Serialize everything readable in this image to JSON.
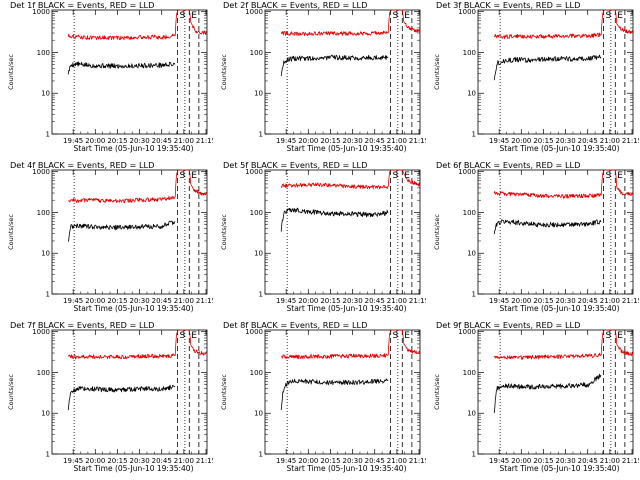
{
  "figure": {
    "xlabel": "Start Time (05-Jun-10 19:35:40)",
    "ylabel": "Counts/sec",
    "colors": {
      "events": "#000000",
      "lld": "#e00000",
      "axes": "#000000",
      "background": "#ffffff"
    }
  },
  "chart_data": [
    {
      "type": "line",
      "title": "Det 1f BLACK = Events, RED = LLD",
      "xlabel": "Start Time (05-Jun-10 19:35:40)",
      "ylabel": "Counts/sec",
      "yscale": "log",
      "ylim": [
        1,
        1100
      ],
      "xlim_minutes": [
        -5,
        100
      ],
      "xticks": [
        "19:45",
        "20:00",
        "20:15",
        "20:30",
        "20:45",
        "21:00",
        "21:15"
      ],
      "yticks": [
        "1",
        "10",
        "100",
        "1000"
      ],
      "series": [
        {
          "name": "Events",
          "color": "black",
          "x": [
            6,
            8,
            12,
            20,
            30,
            40,
            50,
            60,
            70,
            78.5
          ],
          "values": [
            31,
            50,
            52,
            48,
            47,
            46,
            47,
            48,
            49,
            52
          ]
        },
        {
          "name": "LLD",
          "color": "red",
          "x": [
            6,
            10,
            20,
            30,
            40,
            50,
            60,
            70,
            78.5,
            79.5,
            80.5,
            88,
            89,
            92,
            96,
            100
          ],
          "values": [
            260,
            245,
            230,
            232,
            228,
            230,
            240,
            232,
            260,
            900,
            1100,
            1100,
            540,
            340,
            310,
            300
          ]
        }
      ],
      "markers": [
        {
          "label": "S",
          "x": 80,
          "style": "dashed"
        },
        {
          "label": "E",
          "x": 88,
          "style": "dashed"
        },
        {
          "x": 10,
          "style": "dotted"
        },
        {
          "x": 85,
          "style": "dotted"
        },
        {
          "x": 94.5,
          "style": "dashed"
        }
      ]
    },
    {
      "type": "line",
      "title": "Det 2f BLACK = Events, RED = LLD",
      "xlabel": "Start Time (05-Jun-10 19:35:40)",
      "ylabel": "Counts/sec",
      "yscale": "log",
      "ylim": [
        1,
        1100
      ],
      "xlim_minutes": [
        -5,
        100
      ],
      "xticks": [
        "19:45",
        "20:00",
        "20:15",
        "20:30",
        "20:45",
        "21:00",
        "21:15"
      ],
      "yticks": [
        "1",
        "10",
        "100",
        "1000"
      ],
      "series": [
        {
          "name": "Events",
          "color": "black",
          "x": [
            6,
            8,
            12,
            20,
            30,
            40,
            50,
            60,
            70,
            78.5
          ],
          "values": [
            28,
            60,
            70,
            72,
            72,
            75,
            74,
            74,
            75,
            75
          ]
        },
        {
          "name": "LLD",
          "color": "red",
          "x": [
            6,
            10,
            20,
            30,
            40,
            50,
            60,
            70,
            78.5,
            79.5,
            80.5,
            88,
            89,
            92,
            96,
            100
          ],
          "values": [
            300,
            290,
            285,
            290,
            292,
            290,
            295,
            300,
            300,
            950,
            1100,
            1100,
            560,
            400,
            360,
            330
          ]
        }
      ],
      "markers": [
        {
          "label": "S",
          "x": 80,
          "style": "dashed"
        },
        {
          "label": "E",
          "x": 88,
          "style": "dashed"
        },
        {
          "x": 10,
          "style": "dotted"
        },
        {
          "x": 85,
          "style": "dotted"
        },
        {
          "x": 94.5,
          "style": "dashed"
        }
      ]
    },
    {
      "type": "line",
      "title": "Det 3f BLACK = Events, RED = LLD",
      "xlabel": "Start Time (05-Jun-10 19:35:40)",
      "ylabel": "Counts/sec",
      "yscale": "log",
      "ylim": [
        1,
        1100
      ],
      "xlim_minutes": [
        -5,
        100
      ],
      "xticks": [
        "19:45",
        "20:00",
        "20:15",
        "20:30",
        "20:45",
        "21:00",
        "21:15"
      ],
      "yticks": [
        "1",
        "10",
        "100",
        "1000"
      ],
      "series": [
        {
          "name": "Events",
          "color": "black",
          "x": [
            6,
            8,
            12,
            20,
            30,
            40,
            50,
            60,
            70,
            78.5
          ],
          "values": [
            22,
            55,
            62,
            66,
            65,
            68,
            70,
            70,
            72,
            76
          ]
        },
        {
          "name": "LLD",
          "color": "red",
          "x": [
            6,
            10,
            20,
            30,
            40,
            50,
            60,
            70,
            78.5,
            79.5,
            80.5,
            88,
            89,
            92,
            96,
            100
          ],
          "values": [
            250,
            240,
            250,
            248,
            245,
            250,
            255,
            258,
            270,
            900,
            1100,
            1100,
            500,
            360,
            330,
            310
          ]
        }
      ],
      "markers": [
        {
          "label": "S",
          "x": 80,
          "style": "dashed"
        },
        {
          "label": "E",
          "x": 88,
          "style": "dashed"
        },
        {
          "x": 10,
          "style": "dotted"
        },
        {
          "x": 85,
          "style": "dotted"
        },
        {
          "x": 94.5,
          "style": "dashed"
        }
      ]
    },
    {
      "type": "line",
      "title": "Det 4f BLACK = Events, RED = LLD",
      "xlabel": "Start Time (05-Jun-10 19:35:40)",
      "ylabel": "Counts/sec",
      "yscale": "log",
      "ylim": [
        1,
        1100
      ],
      "xlim_minutes": [
        -5,
        100
      ],
      "xticks": [
        "19:45",
        "20:00",
        "20:15",
        "20:30",
        "20:45",
        "21:00",
        "21:15"
      ],
      "yticks": [
        "1",
        "10",
        "100",
        "1000"
      ],
      "series": [
        {
          "name": "Events",
          "color": "black",
          "x": [
            6,
            8,
            12,
            20,
            30,
            40,
            50,
            60,
            70,
            78.5
          ],
          "values": [
            20,
            45,
            48,
            45,
            44,
            43,
            44,
            45,
            46,
            60
          ]
        },
        {
          "name": "LLD",
          "color": "red",
          "x": [
            6,
            10,
            20,
            30,
            40,
            50,
            60,
            70,
            78.5,
            79.5,
            80.5,
            88,
            89,
            92,
            96,
            100
          ],
          "values": [
            200,
            195,
            200,
            195,
            192,
            198,
            205,
            210,
            240,
            900,
            1100,
            1100,
            480,
            330,
            300,
            280
          ]
        }
      ],
      "markers": [
        {
          "label": "S",
          "x": 80,
          "style": "dashed"
        },
        {
          "label": "E",
          "x": 88,
          "style": "dashed"
        },
        {
          "x": 10,
          "style": "dotted"
        },
        {
          "x": 85,
          "style": "dotted"
        },
        {
          "x": 94.5,
          "style": "dashed"
        }
      ]
    },
    {
      "type": "line",
      "title": "Det 5f BLACK = Events, RED = LLD",
      "xlabel": "Start Time (05-Jun-10 19:35:40)",
      "ylabel": "Counts/sec",
      "yscale": "log",
      "ylim": [
        1,
        1100
      ],
      "xlim_minutes": [
        -5,
        100
      ],
      "xticks": [
        "19:45",
        "20:00",
        "20:15",
        "20:30",
        "20:45",
        "21:00",
        "21:15"
      ],
      "yticks": [
        "1",
        "10",
        "100",
        "1000"
      ],
      "series": [
        {
          "name": "Events",
          "color": "black",
          "x": [
            6,
            8,
            12,
            20,
            30,
            40,
            50,
            60,
            70,
            78.5
          ],
          "values": [
            35,
            100,
            115,
            110,
            100,
            95,
            92,
            90,
            88,
            100
          ]
        },
        {
          "name": "LLD",
          "color": "red",
          "x": [
            6,
            10,
            20,
            30,
            40,
            50,
            60,
            70,
            78.5,
            79.5,
            80.5,
            88,
            89,
            92,
            96,
            100
          ],
          "values": [
            450,
            460,
            470,
            480,
            470,
            440,
            420,
            410,
            430,
            1000,
            1100,
            1100,
            900,
            600,
            520,
            480
          ]
        }
      ],
      "markers": [
        {
          "label": "S",
          "x": 80,
          "style": "dashed"
        },
        {
          "label": "E",
          "x": 88,
          "style": "dashed"
        },
        {
          "x": 10,
          "style": "dotted"
        },
        {
          "x": 85,
          "style": "dotted"
        },
        {
          "x": 94.5,
          "style": "dashed"
        }
      ]
    },
    {
      "type": "line",
      "title": "Det 6f BLACK = Events, RED = LLD",
      "xlabel": "Start Time (05-Jun-10 19:35:40)",
      "ylabel": "Counts/sec",
      "yscale": "log",
      "ylim": [
        1,
        1100
      ],
      "xlim_minutes": [
        -5,
        100
      ],
      "xticks": [
        "19:45",
        "20:00",
        "20:15",
        "20:30",
        "20:45",
        "21:00",
        "21:15"
      ],
      "yticks": [
        "1",
        "10",
        "100",
        "1000"
      ],
      "series": [
        {
          "name": "Events",
          "color": "black",
          "x": [
            6,
            8,
            12,
            20,
            30,
            40,
            50,
            60,
            70,
            78.5
          ],
          "values": [
            30,
            55,
            60,
            58,
            52,
            50,
            50,
            50,
            52,
            60
          ]
        },
        {
          "name": "LLD",
          "color": "red",
          "x": [
            6,
            10,
            20,
            30,
            40,
            50,
            60,
            70,
            78.5,
            79.5,
            80.5,
            88,
            89,
            92,
            96,
            100
          ],
          "values": [
            300,
            290,
            280,
            265,
            255,
            250,
            250,
            255,
            265,
            900,
            1100,
            1100,
            400,
            300,
            280,
            270
          ]
        }
      ],
      "markers": [
        {
          "label": "S",
          "x": 80,
          "style": "dashed"
        },
        {
          "label": "E",
          "x": 88,
          "style": "dashed"
        },
        {
          "x": 10,
          "style": "dotted"
        },
        {
          "x": 85,
          "style": "dotted"
        },
        {
          "x": 94.5,
          "style": "dashed"
        }
      ]
    },
    {
      "type": "line",
      "title": "Det 7f BLACK = Events, RED = LLD",
      "xlabel": "Start Time (05-Jun-10 19:35:40)",
      "ylabel": "Counts/sec",
      "yscale": "log",
      "ylim": [
        1,
        1100
      ],
      "xlim_minutes": [
        -5,
        100
      ],
      "xticks": [
        "19:45",
        "20:00",
        "20:15",
        "20:30",
        "20:45",
        "21:00",
        "21:15"
      ],
      "yticks": [
        "1",
        "10",
        "100",
        "1000"
      ],
      "series": [
        {
          "name": "Events",
          "color": "black",
          "x": [
            6,
            8,
            12,
            20,
            30,
            40,
            50,
            60,
            70,
            78.5
          ],
          "values": [
            12,
            35,
            40,
            40,
            38,
            38,
            39,
            40,
            40,
            45
          ]
        },
        {
          "name": "LLD",
          "color": "red",
          "x": [
            6,
            10,
            20,
            30,
            40,
            50,
            60,
            70,
            78.5,
            79.5,
            80.5,
            88,
            89,
            92,
            96,
            100
          ],
          "values": [
            250,
            240,
            245,
            240,
            242,
            245,
            250,
            252,
            260,
            900,
            1100,
            1100,
            460,
            330,
            300,
            290
          ]
        }
      ],
      "markers": [
        {
          "label": "S",
          "x": 80,
          "style": "dashed"
        },
        {
          "label": "E",
          "x": 88,
          "style": "dashed"
        },
        {
          "x": 10,
          "style": "dotted"
        },
        {
          "x": 85,
          "style": "dotted"
        },
        {
          "x": 94.5,
          "style": "dashed"
        }
      ]
    },
    {
      "type": "line",
      "title": "Det 8f BLACK = Events, RED = LLD",
      "xlabel": "Start Time (05-Jun-10 19:35:40)",
      "ylabel": "Counts/sec",
      "yscale": "log",
      "ylim": [
        1,
        1100
      ],
      "xlim_minutes": [
        -5,
        100
      ],
      "xticks": [
        "19:45",
        "20:00",
        "20:15",
        "20:30",
        "20:45",
        "21:00",
        "21:15"
      ],
      "yticks": [
        "1",
        "10",
        "100",
        "1000"
      ],
      "series": [
        {
          "name": "Events",
          "color": "black",
          "x": [
            6,
            8,
            12,
            20,
            30,
            40,
            50,
            60,
            70,
            78.5
          ],
          "values": [
            12,
            45,
            60,
            62,
            58,
            56,
            57,
            58,
            60,
            65
          ]
        },
        {
          "name": "LLD",
          "color": "red",
          "x": [
            6,
            10,
            20,
            30,
            40,
            50,
            60,
            70,
            78.5,
            79.5,
            80.5,
            88,
            89,
            92,
            96,
            100
          ],
          "values": [
            250,
            245,
            240,
            250,
            248,
            252,
            255,
            258,
            265,
            900,
            1100,
            1100,
            500,
            360,
            320,
            300
          ]
        }
      ],
      "markers": [
        {
          "label": "S",
          "x": 80,
          "style": "dashed"
        },
        {
          "label": "E",
          "x": 88,
          "style": "dashed"
        },
        {
          "x": 10,
          "style": "dotted"
        },
        {
          "x": 85,
          "style": "dotted"
        },
        {
          "x": 94.5,
          "style": "dashed"
        }
      ]
    },
    {
      "type": "line",
      "title": "Det 9f BLACK = Events, RED = LLD",
      "xlabel": "Start Time (05-Jun-10 19:35:40)",
      "ylabel": "Counts/sec",
      "yscale": "log",
      "ylim": [
        1,
        1100
      ],
      "xlim_minutes": [
        -5,
        100
      ],
      "xticks": [
        "19:45",
        "20:00",
        "20:15",
        "20:30",
        "20:45",
        "21:00",
        "21:15"
      ],
      "yticks": [
        "1",
        "10",
        "100",
        "1000"
      ],
      "series": [
        {
          "name": "Events",
          "color": "black",
          "x": [
            6,
            8,
            12,
            20,
            30,
            40,
            50,
            60,
            70,
            78.5
          ],
          "values": [
            10,
            40,
            48,
            45,
            44,
            45,
            46,
            48,
            50,
            85
          ]
        },
        {
          "name": "LLD",
          "color": "red",
          "x": [
            6,
            10,
            20,
            30,
            40,
            50,
            60,
            70,
            78.5,
            79.5,
            80.5,
            88,
            89,
            92,
            96,
            100
          ],
          "values": [
            250,
            240,
            230,
            235,
            240,
            245,
            250,
            255,
            270,
            900,
            1100,
            1100,
            480,
            330,
            300,
            280
          ]
        }
      ],
      "markers": [
        {
          "label": "S",
          "x": 80,
          "style": "dashed"
        },
        {
          "label": "E",
          "x": 88,
          "style": "dashed"
        },
        {
          "x": 10,
          "style": "dotted"
        },
        {
          "x": 85,
          "style": "dotted"
        },
        {
          "x": 94.5,
          "style": "dashed"
        }
      ]
    }
  ]
}
